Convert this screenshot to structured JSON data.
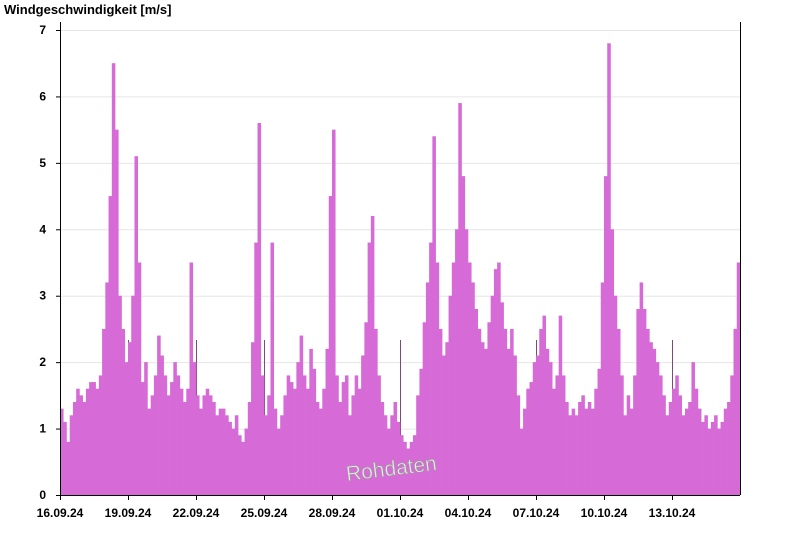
{
  "chart_data": {
    "type": "area",
    "ylabel": "Windgeschwindigkeit [m/s]",
    "ylim": [
      0,
      7
    ],
    "yticks": [
      0,
      1,
      2,
      3,
      4,
      5,
      6,
      7
    ],
    "xlim": [
      "2024-09-16 00:00",
      "2024-10-16 00:00"
    ],
    "xtick_labels": [
      "16.09.24",
      "19.09.24",
      "22.09.24",
      "25.09.24",
      "28.09.24",
      "01.10.24",
      "04.10.24",
      "07.10.24",
      "10.10.24",
      "13.10.24"
    ],
    "grid": true,
    "fill_color": "#d66ad6",
    "annotation": "Rohdaten",
    "series": [
      {
        "sample_interval_hours": 3,
        "values": [
          1.3,
          1.1,
          0.8,
          1.2,
          1.4,
          1.6,
          1.5,
          1.4,
          1.6,
          1.7,
          1.7,
          1.6,
          1.8,
          2.5,
          3.2,
          4.5,
          6.5,
          5.5,
          3.0,
          2.5,
          2.0,
          2.3,
          3.0,
          5.1,
          3.5,
          1.7,
          2.0,
          1.3,
          1.5,
          1.8,
          2.4,
          2.1,
          1.8,
          1.5,
          1.7,
          2.0,
          1.8,
          1.6,
          1.4,
          1.6,
          3.5,
          2.0,
          1.5,
          1.3,
          1.5,
          1.6,
          1.5,
          1.4,
          1.2,
          1.3,
          1.3,
          1.2,
          1.1,
          1.0,
          1.2,
          0.9,
          0.8,
          1.0,
          1.4,
          2.3,
          3.8,
          5.6,
          1.8,
          1.2,
          1.5,
          3.8,
          1.3,
          1.0,
          1.2,
          1.5,
          1.8,
          1.7,
          1.6,
          2.0,
          2.4,
          1.8,
          1.6,
          2.2,
          1.9,
          1.4,
          1.3,
          1.6,
          2.2,
          4.5,
          5.5,
          1.8,
          1.4,
          1.7,
          1.8,
          1.2,
          1.5,
          1.8,
          1.6,
          2.1,
          2.6,
          3.8,
          4.2,
          2.5,
          1.8,
          1.4,
          1.2,
          1.0,
          1.2,
          1.4,
          1.1,
          0.9,
          0.8,
          0.7,
          0.8,
          0.9,
          1.5,
          1.9,
          2.6,
          3.2,
          3.8,
          5.4,
          3.5,
          2.5,
          2.1,
          2.3,
          3.0,
          3.5,
          4.0,
          5.9,
          4.8,
          4.0,
          3.5,
          3.2,
          2.8,
          2.5,
          2.3,
          2.2,
          2.6,
          3.0,
          3.4,
          3.5,
          2.9,
          2.5,
          2.2,
          2.5,
          2.1,
          1.5,
          1.0,
          1.3,
          1.6,
          1.7,
          2.0,
          2.1,
          2.5,
          2.7,
          2.2,
          2.0,
          1.6,
          1.8,
          2.7,
          1.8,
          1.4,
          1.2,
          1.3,
          1.2,
          1.4,
          1.5,
          1.3,
          1.4,
          1.3,
          1.6,
          1.9,
          3.2,
          4.8,
          6.8,
          4.0,
          3.0,
          2.5,
          1.8,
          1.2,
          1.5,
          1.3,
          1.8,
          2.8,
          3.2,
          2.8,
          2.5,
          2.3,
          2.2,
          2.0,
          1.8,
          1.5,
          1.2,
          1.4,
          1.6,
          1.8,
          1.5,
          1.2,
          1.3,
          1.4,
          2.0,
          1.6,
          1.3,
          1.1,
          1.2,
          1.0,
          1.1,
          1.2,
          1.0,
          1.1,
          1.3,
          1.4,
          1.8,
          2.5,
          3.5
        ]
      }
    ]
  }
}
